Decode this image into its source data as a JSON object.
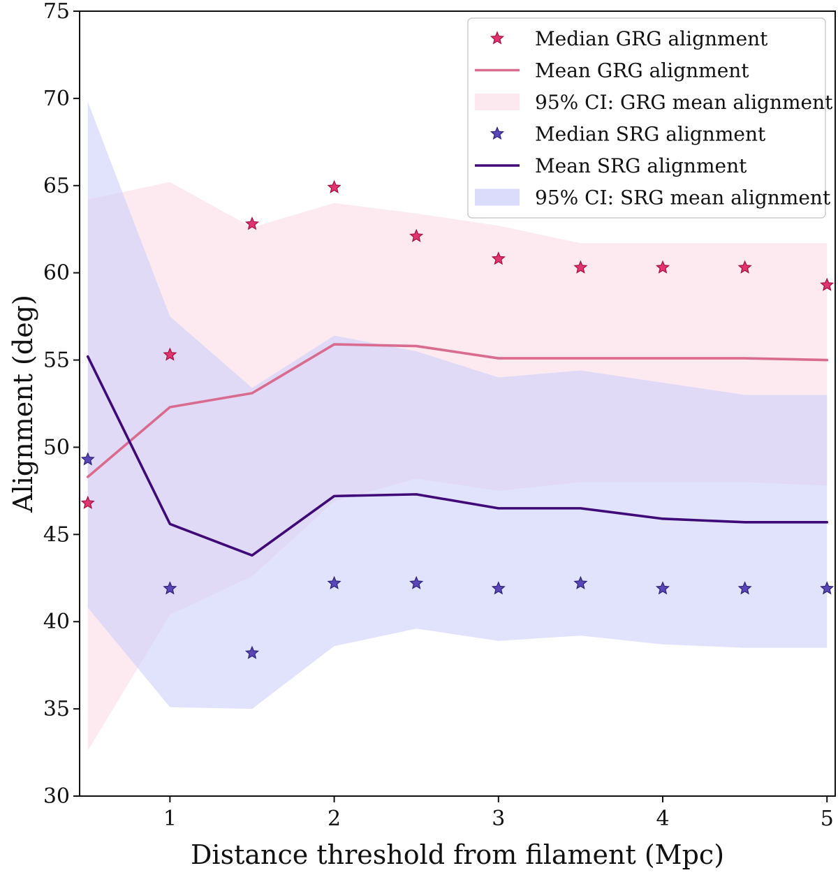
{
  "chart_data": {
    "type": "line",
    "title": "",
    "xlabel": "Distance threshold from filament (Mpc)",
    "ylabel": "Alignment (deg)",
    "xlim": [
      0.45,
      5.05
    ],
    "ylim": [
      30,
      75
    ],
    "xticks": [
      1,
      2,
      3,
      4,
      5
    ],
    "yticks": [
      30,
      35,
      40,
      45,
      50,
      55,
      60,
      65,
      70,
      75
    ],
    "x": [
      0.5,
      1.0,
      1.5,
      2.0,
      2.5,
      3.0,
      3.5,
      4.0,
      4.5,
      5.0
    ],
    "grid": false,
    "legend_position": "top-right",
    "colors": {
      "grg": "#d96c8e",
      "grg_star": "#e0356e",
      "grg_band": "#fce8ee",
      "srg": "#3f0a78",
      "srg_star": "#5a46b8",
      "srg_band": "#cfd0fa"
    },
    "series": [
      {
        "name": "Median GRG alignment",
        "kind": "marker",
        "marker": "star",
        "color_key": "grg_star",
        "values": [
          46.8,
          55.3,
          62.8,
          64.9,
          62.1,
          60.8,
          60.3,
          60.3,
          60.3,
          59.3
        ]
      },
      {
        "name": "Mean GRG alignment",
        "kind": "line",
        "color_key": "grg",
        "values": [
          48.3,
          52.3,
          53.1,
          55.9,
          55.8,
          55.1,
          55.1,
          55.1,
          55.1,
          55.0
        ]
      },
      {
        "name": "95% CI: GRG mean alignment",
        "kind": "band",
        "color_key": "grg_band",
        "lower": [
          32.6,
          40.4,
          42.6,
          46.9,
          48.2,
          47.5,
          48.0,
          48.0,
          48.0,
          47.8
        ],
        "upper": [
          64.2,
          65.2,
          62.6,
          64.0,
          63.4,
          62.7,
          61.7,
          61.7,
          61.7,
          61.7
        ]
      },
      {
        "name": "Median SRG alignment",
        "kind": "marker",
        "marker": "star",
        "color_key": "srg_star",
        "values": [
          49.3,
          41.9,
          38.2,
          42.2,
          42.2,
          41.9,
          42.2,
          41.9,
          41.9,
          41.9
        ]
      },
      {
        "name": "Mean SRG alignment",
        "kind": "line",
        "color_key": "srg",
        "values": [
          55.2,
          45.6,
          43.8,
          47.2,
          47.3,
          46.5,
          46.5,
          45.9,
          45.7,
          45.7
        ]
      },
      {
        "name": "95% CI: SRG mean alignment",
        "kind": "band",
        "color_key": "srg_band",
        "lower": [
          40.8,
          35.1,
          35.0,
          38.6,
          39.6,
          38.9,
          39.2,
          38.7,
          38.5,
          38.5
        ],
        "upper": [
          69.8,
          57.5,
          53.4,
          56.4,
          55.5,
          54.0,
          54.4,
          53.7,
          53.0,
          53.0
        ]
      }
    ],
    "legend_order": [
      0,
      1,
      2,
      3,
      4,
      5
    ]
  }
}
